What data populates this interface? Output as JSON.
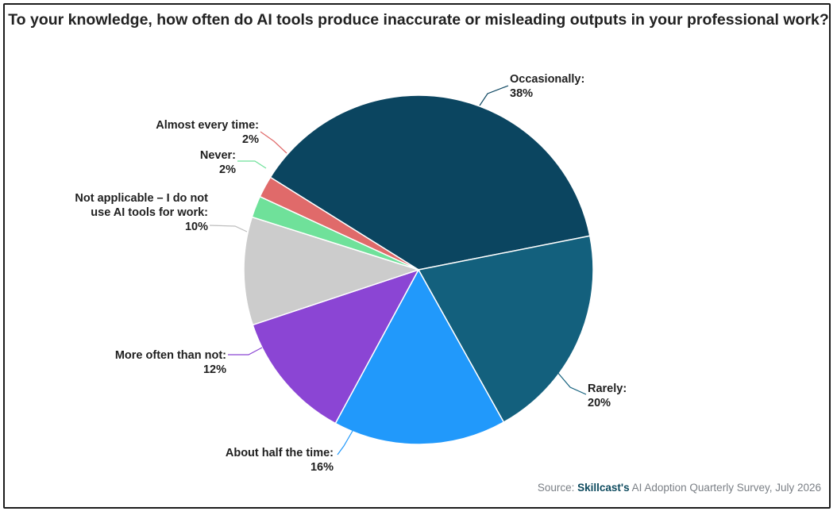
{
  "chart_data": {
    "type": "pie",
    "title": "To your knowledge, how often do AI tools produce inaccurate or misleading outputs in your professional work?",
    "slices": [
      {
        "label": [
          "Occasionally:"
        ],
        "pct_label": "38%",
        "value": 38,
        "color": "#0b4560"
      },
      {
        "label": [
          "Rarely:"
        ],
        "pct_label": "20%",
        "value": 20,
        "color": "#13607d"
      },
      {
        "label": [
          "About half the time:"
        ],
        "pct_label": "16%",
        "value": 16,
        "color": "#2199fb"
      },
      {
        "label": [
          "More often than not:"
        ],
        "pct_label": "12%",
        "value": 12,
        "color": "#8b45d4"
      },
      {
        "label": [
          "Not applicable – I do not",
          "use AI tools for work:"
        ],
        "pct_label": "10%",
        "value": 10,
        "color": "#cccccc"
      },
      {
        "label": [
          "Never:"
        ],
        "pct_label": "2%",
        "value": 2,
        "color": "#6fe19a"
      },
      {
        "label": [
          "Almost every time:"
        ],
        "pct_label": "2%",
        "value": 2,
        "color": "#e06a6a"
      }
    ]
  },
  "source": {
    "prefix": "Source: ",
    "brand": "Skillcast's",
    "suffix": " AI Adoption Quarterly Survey, July 2026"
  }
}
